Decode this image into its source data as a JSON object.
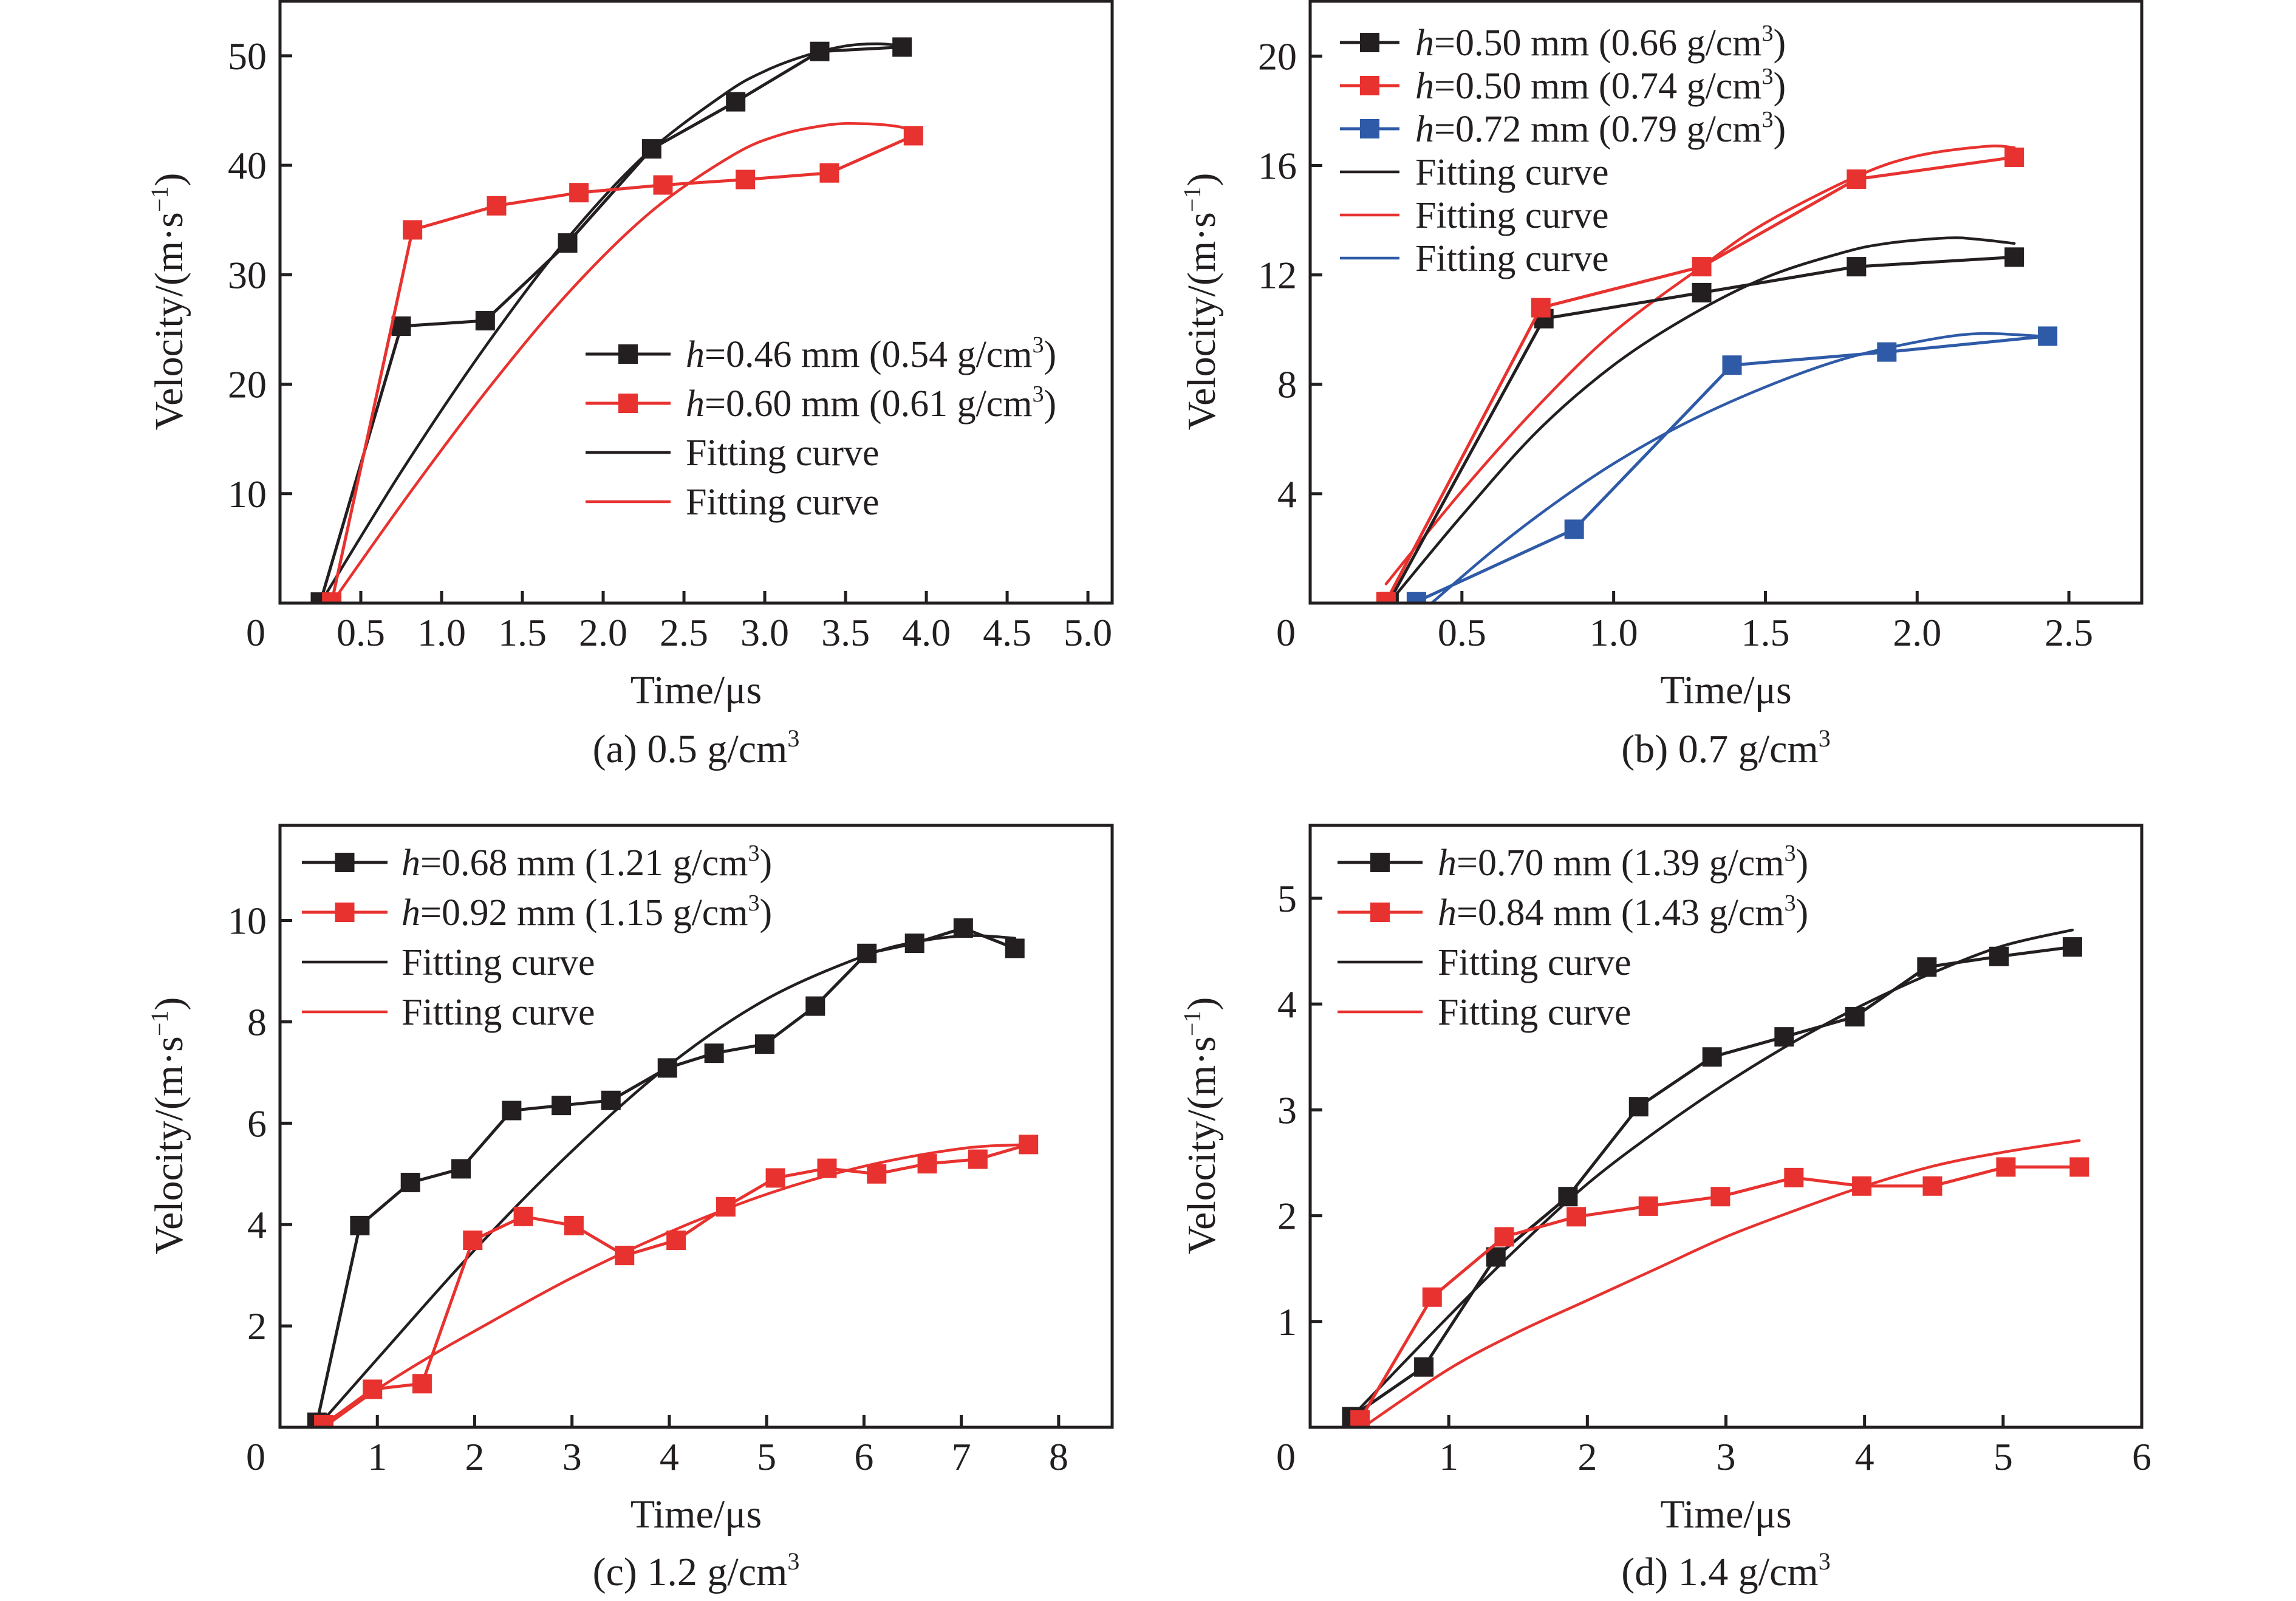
{
  "figure": {
    "y_label_main": "Velocity/(m·s",
    "y_label_sup": "−1",
    "y_label_close": ")",
    "x_label": "Time/μs",
    "colors": {
      "black": "#231f20",
      "red": "#e8322f",
      "blue": "#2e5aa7"
    }
  },
  "chart_data": [
    {
      "id": "a",
      "type": "line",
      "caption_main": "(a) 0.5 g/cm",
      "caption_sup": "3",
      "xlabel": "Time/μs",
      "ylabel": "Velocity/(m·s⁻¹)",
      "xlim": [
        0,
        5.15
      ],
      "ylim": [
        0,
        55.1
      ],
      "xticks": [
        0.5,
        1.0,
        1.5,
        2.0,
        2.5,
        3.0,
        3.5,
        4.0,
        4.5,
        5.0
      ],
      "xtick_labels": [
        "0.5",
        "1.0",
        "1.5",
        "2.0",
        "2.5",
        "3.0",
        "3.5",
        "4.0",
        "4.5",
        "5.0"
      ],
      "yticks": [
        10,
        20,
        30,
        40,
        50
      ],
      "ytick_labels": [
        "10",
        "20",
        "30",
        "40",
        "50"
      ],
      "origin_label": "0",
      "legend_position": "center-right",
      "series": [
        {
          "name": "h=0.46 mm (0.54 g/cm3)",
          "legend_italic": "h",
          "legend_rest": "=0.46 mm (0.54 g/cm",
          "legend_sup": "3",
          "legend_close": ")",
          "color": "black",
          "kind": "data",
          "x": [
            0.25,
            0.75,
            1.27,
            1.78,
            2.3,
            2.82,
            3.34,
            3.85
          ],
          "y": [
            0.1,
            25.3,
            25.8,
            32.9,
            41.5,
            45.8,
            50.4,
            50.8
          ]
        },
        {
          "name": "h=0.60 mm (0.61 g/cm3)",
          "legend_italic": "h",
          "legend_rest": "=0.60 mm (0.61 g/cm",
          "legend_sup": "3",
          "legend_close": ")",
          "color": "red",
          "kind": "data",
          "x": [
            0.32,
            0.82,
            1.34,
            1.85,
            2.37,
            2.88,
            3.4,
            3.92
          ],
          "y": [
            0.1,
            34.1,
            36.3,
            37.5,
            38.2,
            38.7,
            39.3,
            42.7
          ]
        },
        {
          "name": "Fitting curve",
          "legend_rest": "Fitting curve",
          "color": "black",
          "kind": "fit",
          "x": [
            0.25,
            0.75,
            1.25,
            1.75,
            2.25,
            2.75,
            3.0,
            3.25,
            3.5,
            3.7,
            3.85
          ],
          "y": [
            0.0,
            12.0,
            23.0,
            32.8,
            40.8,
            46.5,
            48.6,
            50.0,
            50.9,
            51.1,
            50.9
          ]
        },
        {
          "name": "Fitting curve",
          "legend_rest": "Fitting curve",
          "color": "red",
          "kind": "fit",
          "x": [
            0.32,
            0.8,
            1.3,
            1.8,
            2.3,
            2.8,
            3.1,
            3.4,
            3.6,
            3.8,
            3.92
          ],
          "y": [
            0.0,
            10.0,
            19.8,
            28.6,
            35.8,
            40.9,
            42.8,
            43.7,
            43.8,
            43.6,
            43.2
          ]
        }
      ]
    },
    {
      "id": "b",
      "type": "line",
      "caption_main": "(b) 0.7 g/cm",
      "caption_sup": "3",
      "xlabel": "Time/μs",
      "ylabel": "Velocity/(m·s⁻¹)",
      "xlim": [
        0,
        2.74
      ],
      "ylim": [
        0,
        22.05
      ],
      "xticks": [
        0.5,
        1.0,
        1.5,
        2.0,
        2.5
      ],
      "xtick_labels": [
        "0.5",
        "1.0",
        "1.5",
        "2.0",
        "2.5"
      ],
      "yticks": [
        4,
        8,
        12,
        16,
        20
      ],
      "ytick_labels": [
        "4",
        "8",
        "12",
        "16",
        "20"
      ],
      "origin_label": "0",
      "legend_position": "top-left",
      "series": [
        {
          "name": "h=0.50 mm (0.66 g/cm3)",
          "legend_italic": "h",
          "legend_rest": "=0.50 mm (0.66 g/cm",
          "legend_sup": "3",
          "legend_close": ")",
          "color": "black",
          "kind": "data",
          "x": [
            0.26,
            0.77,
            1.29,
            1.8,
            2.32
          ],
          "y": [
            0.05,
            10.4,
            11.35,
            12.3,
            12.65
          ]
        },
        {
          "name": "h=0.50 mm (0.74 g/cm3)",
          "legend_italic": "h",
          "legend_rest": "=0.50 mm (0.74 g/cm",
          "legend_sup": "3",
          "legend_close": ")",
          "color": "red",
          "kind": "data",
          "x": [
            0.25,
            0.76,
            1.29,
            1.8,
            2.32
          ],
          "y": [
            0.05,
            10.8,
            12.3,
            15.5,
            16.3
          ]
        },
        {
          "name": "h=0.72 mm (0.79 g/cm3)",
          "legend_italic": "h",
          "legend_rest": "=0.72 mm (0.79 g/cm",
          "legend_sup": "3",
          "legend_close": ")",
          "color": "blue",
          "kind": "data",
          "x": [
            0.35,
            0.87,
            1.39,
            1.9,
            2.43
          ],
          "y": [
            0.05,
            2.7,
            8.7,
            9.18,
            9.76
          ]
        },
        {
          "name": "Fitting curve",
          "legend_rest": "Fitting curve",
          "color": "black",
          "kind": "fit",
          "x": [
            0.26,
            0.5,
            0.75,
            1.0,
            1.25,
            1.5,
            1.75,
            1.9,
            2.1,
            2.2,
            2.32
          ],
          "y": [
            0.0,
            3.2,
            6.3,
            8.7,
            10.5,
            11.9,
            12.8,
            13.15,
            13.35,
            13.3,
            13.15
          ]
        },
        {
          "name": "Fitting curve",
          "legend_rest": "Fitting curve",
          "color": "red",
          "kind": "fit",
          "x": [
            0.25,
            0.5,
            0.75,
            1.0,
            1.29,
            1.5,
            1.8,
            2.0,
            2.23,
            2.32
          ],
          "y": [
            0.7,
            4.1,
            7.2,
            9.9,
            12.3,
            13.9,
            15.6,
            16.35,
            16.7,
            16.65
          ]
        },
        {
          "name": "Fitting curve",
          "legend_rest": "Fitting curve",
          "color": "blue",
          "kind": "fit",
          "x": [
            0.4,
            0.6,
            0.8,
            1.0,
            1.24,
            1.5,
            1.75,
            2.0,
            2.2,
            2.42
          ],
          "y": [
            0.0,
            1.9,
            3.6,
            5.1,
            6.6,
            7.9,
            8.9,
            9.55,
            9.85,
            9.75
          ]
        }
      ]
    },
    {
      "id": "c",
      "type": "line",
      "caption_main": "(c) 1.2 g/cm",
      "caption_sup": "3",
      "xlabel": "Time/μs",
      "ylabel": "Velocity/(m·s⁻¹)",
      "xlim": [
        0,
        8.55
      ],
      "ylim": [
        0,
        11.9
      ],
      "xticks": [
        1,
        2,
        3,
        4,
        5,
        6,
        7,
        8
      ],
      "xtick_labels": [
        "1",
        "2",
        "3",
        "4",
        "5",
        "6",
        "7",
        "8"
      ],
      "yticks": [
        2,
        4,
        6,
        8,
        10
      ],
      "ytick_labels": [
        "2",
        "4",
        "6",
        "8",
        "10"
      ],
      "origin_label": "0",
      "legend_position": "top-left",
      "series": [
        {
          "name": "h=0.68 mm (1.21 g/cm3)",
          "legend_italic": "h",
          "legend_rest": "=0.68 mm (1.21 g/cm",
          "legend_sup": "3",
          "legend_close": ")",
          "color": "black",
          "kind": "data",
          "x": [
            0.38,
            0.82,
            1.34,
            1.86,
            2.38,
            2.89,
            3.4,
            3.98,
            4.46,
            4.98,
            5.5,
            6.03,
            6.52,
            7.02,
            7.55
          ],
          "y": [
            0.1,
            3.98,
            4.83,
            5.1,
            6.25,
            6.35,
            6.45,
            7.09,
            7.38,
            7.56,
            8.31,
            9.35,
            9.55,
            9.85,
            9.45
          ]
        },
        {
          "name": "h=0.92 mm (1.15 g/cm3)",
          "legend_italic": "h",
          "legend_rest": "=0.92 mm (1.15 g/cm",
          "legend_sup": "3",
          "legend_close": ")",
          "color": "red",
          "kind": "data",
          "x": [
            0.45,
            0.95,
            1.46,
            1.98,
            2.5,
            3.02,
            3.54,
            4.07,
            4.58,
            5.09,
            5.62,
            6.13,
            6.65,
            7.17,
            7.69
          ],
          "y": [
            0.05,
            0.75,
            0.86,
            3.69,
            4.16,
            3.98,
            3.39,
            3.69,
            4.35,
            4.92,
            5.11,
            5.0,
            5.2,
            5.29,
            5.58
          ]
        },
        {
          "name": "Fitting curve",
          "legend_rest": "Fitting curve",
          "color": "black",
          "kind": "fit",
          "x": [
            0.38,
            1.0,
            2.0,
            3.0,
            4.0,
            5.0,
            6.0,
            6.6,
            7.1,
            7.55
          ],
          "y": [
            0.0,
            1.35,
            3.5,
            5.45,
            7.15,
            8.45,
            9.3,
            9.6,
            9.7,
            9.65
          ]
        },
        {
          "name": "Fitting curve",
          "legend_rest": "Fitting curve",
          "color": "red",
          "kind": "fit",
          "x": [
            0.45,
            1.0,
            1.5,
            2.0,
            3.0,
            4.0,
            5.0,
            6.0,
            7.0,
            7.69
          ],
          "y": [
            0.0,
            0.75,
            1.35,
            1.9,
            2.95,
            3.85,
            4.6,
            5.15,
            5.5,
            5.58
          ]
        }
      ]
    },
    {
      "id": "d",
      "type": "line",
      "caption_main": "(d) 1.4 g/cm",
      "caption_sup": "3",
      "xlabel": "Time/μs",
      "ylabel": "Velocity/(m·s⁻¹)",
      "xlim": [
        0,
        6.0
      ],
      "ylim": [
        0,
        5.7
      ],
      "xticks": [
        1,
        2,
        3,
        4,
        5,
        6
      ],
      "xtick_labels": [
        "1",
        "2",
        "3",
        "4",
        "5",
        "6"
      ],
      "yticks": [
        1,
        2,
        3,
        4,
        5
      ],
      "ytick_labels": [
        "1",
        "2",
        "3",
        "4",
        "5"
      ],
      "origin_label": "0",
      "legend_position": "top-left",
      "series": [
        {
          "name": "h=0.70 mm (1.39 g/cm3)",
          "legend_italic": "h",
          "legend_rest": "=0.70 mm (1.39 g/cm",
          "legend_sup": "3",
          "legend_close": ")",
          "color": "black",
          "kind": "data",
          "x": [
            0.3,
            0.82,
            1.34,
            1.86,
            2.37,
            2.9,
            3.42,
            3.93,
            4.45,
            4.97,
            5.5
          ],
          "y": [
            0.1,
            0.57,
            1.61,
            2.18,
            3.03,
            3.5,
            3.69,
            3.88,
            4.35,
            4.45,
            4.54
          ]
        },
        {
          "name": "h=0.84 mm (1.43 g/cm3)",
          "legend_italic": "h",
          "legend_rest": "=0.84 mm (1.43 g/cm",
          "legend_sup": "3",
          "legend_close": ")",
          "color": "red",
          "kind": "data",
          "x": [
            0.36,
            0.88,
            1.4,
            1.92,
            2.44,
            2.96,
            3.49,
            3.98,
            4.49,
            5.02,
            5.55
          ],
          "y": [
            0.07,
            1.23,
            1.8,
            1.99,
            2.09,
            2.18,
            2.36,
            2.28,
            2.28,
            2.46,
            2.46
          ]
        },
        {
          "name": "Fitting curve",
          "legend_rest": "Fitting curve",
          "color": "black",
          "kind": "fit",
          "x": [
            0.3,
            1.0,
            1.5,
            2.0,
            2.5,
            3.0,
            3.5,
            4.0,
            4.5,
            5.0,
            5.5
          ],
          "y": [
            0.1,
            1.05,
            1.7,
            2.3,
            2.8,
            3.25,
            3.65,
            4.0,
            4.3,
            4.55,
            4.7
          ]
        },
        {
          "name": "Fitting curve",
          "legend_rest": "Fitting curve",
          "color": "red",
          "kind": "fit",
          "x": [
            0.38,
            1.0,
            1.5,
            2.0,
            2.5,
            3.0,
            3.5,
            4.0,
            4.5,
            5.0,
            5.55
          ],
          "y": [
            0.0,
            0.55,
            0.9,
            1.2,
            1.5,
            1.8,
            2.05,
            2.28,
            2.47,
            2.6,
            2.71
          ]
        }
      ]
    }
  ]
}
